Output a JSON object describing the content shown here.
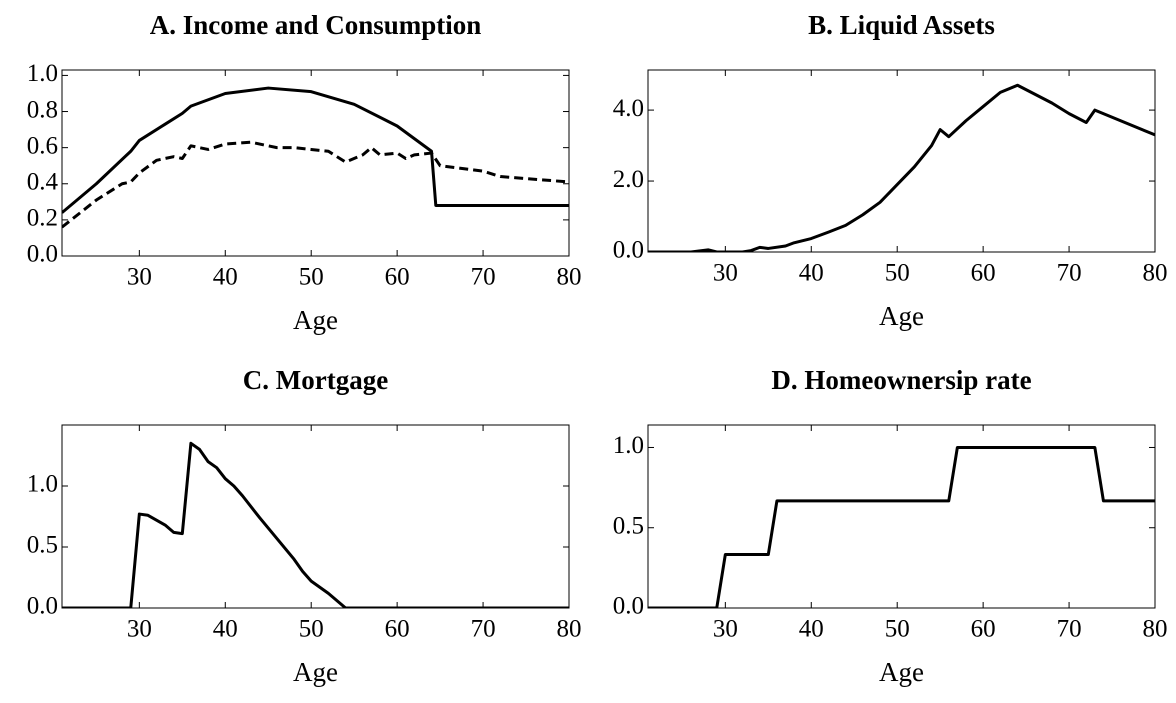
{
  "chart_data": [
    {
      "type": "line",
      "title": "A. Income and Consumption",
      "x_label": "Age",
      "xlim": [
        21,
        80
      ],
      "xticks": [
        30,
        40,
        50,
        60,
        70,
        80
      ],
      "ylim": [
        0,
        1.03
      ],
      "yticks": [
        {
          "value": 0,
          "label": "0.0"
        },
        0.2,
        0.4,
        0.6,
        0.8,
        {
          "value": 1,
          "label": "1.0"
        }
      ],
      "series": [
        {
          "color": "#000000",
          "style": "solid",
          "x": [
            21,
            25,
            29,
            30,
            33,
            35,
            36,
            40,
            45,
            50,
            55,
            60,
            64,
            64.5,
            65,
            80
          ],
          "values": [
            0.24,
            0.4,
            0.58,
            0.64,
            0.73,
            0.79,
            0.83,
            0.9,
            0.93,
            0.91,
            0.84,
            0.72,
            0.58,
            0.28,
            0.28,
            0.28
          ]
        },
        {
          "color": "#000000",
          "style": "dashed",
          "x": [
            21,
            25,
            28,
            29,
            30,
            32,
            34,
            35,
            36,
            37,
            38,
            40,
            43,
            45,
            46,
            48,
            50,
            52,
            54,
            56,
            57,
            58,
            60,
            61,
            62,
            64,
            65,
            70,
            72,
            80
          ],
          "values": [
            0.16,
            0.31,
            0.4,
            0.41,
            0.46,
            0.53,
            0.55,
            0.54,
            0.61,
            0.6,
            0.59,
            0.62,
            0.63,
            0.61,
            0.6,
            0.6,
            0.59,
            0.58,
            0.52,
            0.56,
            0.6,
            0.56,
            0.57,
            0.54,
            0.56,
            0.57,
            0.5,
            0.47,
            0.44,
            0.41
          ]
        }
      ]
    },
    {
      "type": "line",
      "title": "B. Liquid Assets",
      "x_label": "Age",
      "xlim": [
        21,
        80
      ],
      "xticks": [
        30,
        40,
        50,
        60,
        70,
        80
      ],
      "ylim": [
        0,
        5.13
      ],
      "yticks": [
        {
          "value": 0,
          "label": "0.0"
        },
        {
          "value": 2,
          "label": "2.0"
        },
        {
          "value": 4,
          "label": "4.0"
        }
      ],
      "series": [
        {
          "color": "#000000",
          "style": "solid",
          "x": [
            21,
            26,
            28,
            29,
            32,
            33,
            34,
            35,
            37,
            38,
            40,
            42,
            44,
            46,
            48,
            50,
            52,
            54,
            55,
            56,
            58,
            60,
            62,
            64,
            66,
            68,
            70,
            72,
            73,
            76,
            80
          ],
          "values": [
            0,
            0,
            0.06,
            0,
            0,
            0.04,
            0.13,
            0.1,
            0.17,
            0.26,
            0.38,
            0.56,
            0.75,
            1.05,
            1.4,
            1.9,
            2.4,
            3.0,
            3.45,
            3.25,
            3.7,
            4.1,
            4.5,
            4.7,
            4.45,
            4.2,
            3.9,
            3.65,
            4.0,
            3.7,
            3.3
          ]
        }
      ]
    },
    {
      "type": "line",
      "title": "C. Mortgage",
      "x_label": "Age",
      "xlim": [
        21,
        80
      ],
      "xticks": [
        30,
        40,
        50,
        60,
        70,
        80
      ],
      "ylim": [
        0,
        1.5
      ],
      "yticks": [
        {
          "value": 0,
          "label": "0.0"
        },
        0.5,
        {
          "value": 1,
          "label": "1.0"
        }
      ],
      "series": [
        {
          "color": "#000000",
          "style": "solid",
          "x": [
            21,
            29,
            30,
            31,
            33,
            34,
            35,
            36,
            37,
            38,
            39,
            40,
            41,
            42,
            44,
            46,
            48,
            49,
            50,
            52,
            54,
            80
          ],
          "values": [
            0,
            0,
            0.77,
            0.76,
            0.68,
            0.62,
            0.61,
            1.35,
            1.3,
            1.2,
            1.15,
            1.06,
            1.0,
            0.92,
            0.74,
            0.57,
            0.4,
            0.3,
            0.22,
            0.12,
            0,
            0
          ]
        }
      ]
    },
    {
      "type": "line",
      "title": "D. Homeownersip rate",
      "x_label": "Age",
      "xlim": [
        21,
        80
      ],
      "xticks": [
        30,
        40,
        50,
        60,
        70,
        80
      ],
      "ylim": [
        0,
        1.14
      ],
      "yticks": [
        {
          "value": 0,
          "label": "0.0"
        },
        0.5,
        {
          "value": 1,
          "label": "1.0"
        }
      ],
      "series": [
        {
          "color": "#000000",
          "style": "solid",
          "x": [
            21,
            29,
            30,
            35,
            36,
            56,
            57,
            73,
            74,
            80
          ],
          "values": [
            0,
            0,
            0.333,
            0.333,
            0.667,
            0.667,
            1,
            1,
            0.667,
            0.667
          ]
        }
      ]
    }
  ]
}
